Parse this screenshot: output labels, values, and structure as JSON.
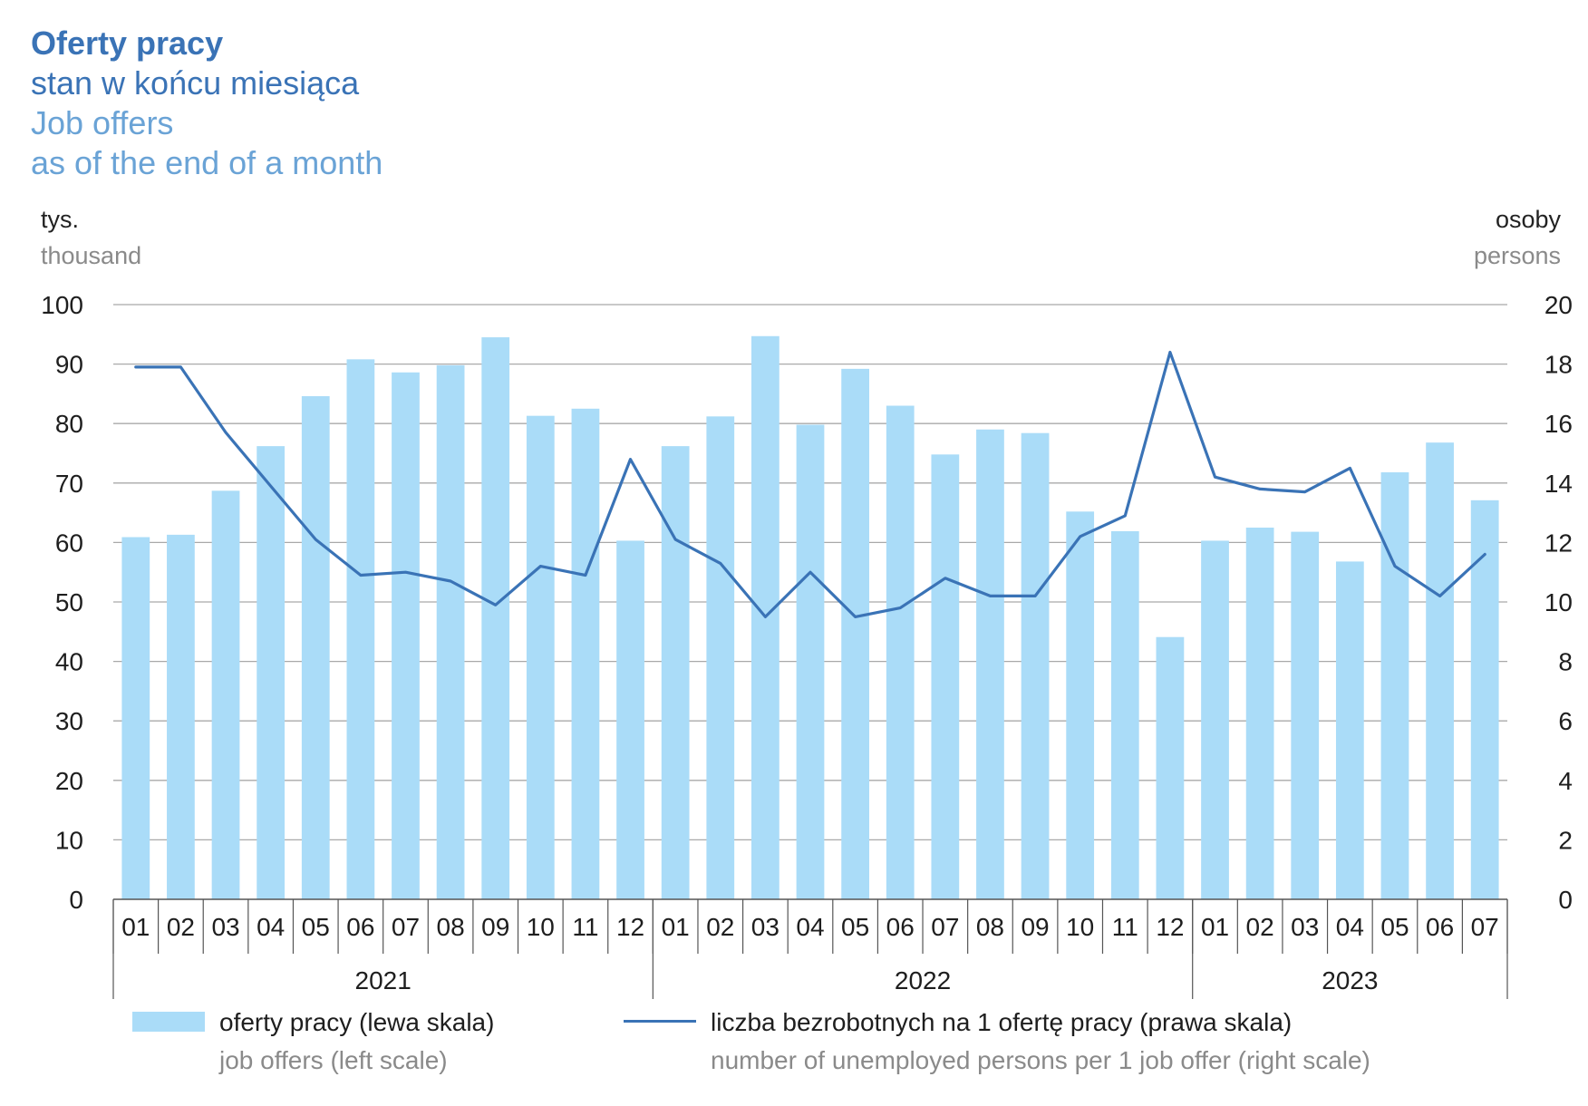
{
  "title": {
    "pl_bold": "Oferty pracy",
    "pl_sub": "stan w końcu miesiąca",
    "en_line1": "Job offers",
    "en_line2": "as of the end of a month"
  },
  "units": {
    "left_pl": "tys.",
    "left_en": "thousand",
    "right_pl": "osoby",
    "right_en": "persons"
  },
  "legend": {
    "bars_pl": "oferty pracy (lewa skala)",
    "bars_en": "job offers (left scale)",
    "line_pl": "liczba bezrobotnych na 1 ofertę pracy (prawa skala)",
    "line_en": "number of unemployed persons per 1 job offer (right scale)"
  },
  "colors": {
    "bars": "#aadcf8",
    "line": "#3a73b6",
    "grid": "#a9a9a9",
    "axis": "#555555"
  },
  "chart_data": {
    "type": "bar",
    "categories": [
      "01",
      "02",
      "03",
      "04",
      "05",
      "06",
      "07",
      "08",
      "09",
      "10",
      "11",
      "12",
      "01",
      "02",
      "03",
      "04",
      "05",
      "06",
      "07",
      "08",
      "09",
      "10",
      "11",
      "12",
      "01",
      "02",
      "03",
      "04",
      "05",
      "06",
      "07"
    ],
    "year_groups": [
      {
        "label": "2021",
        "count": 12
      },
      {
        "label": "2022",
        "count": 12
      },
      {
        "label": "2023",
        "count": 7
      }
    ],
    "series": [
      {
        "name": "oferty pracy (lewa skala)",
        "type": "bar",
        "axis": "left",
        "values": [
          60.9,
          61.3,
          68.7,
          76.2,
          84.6,
          90.8,
          88.6,
          89.8,
          94.5,
          81.3,
          82.5,
          60.3,
          76.2,
          81.2,
          94.7,
          79.8,
          89.2,
          83.0,
          74.8,
          79.0,
          78.4,
          65.2,
          61.9,
          44.1,
          60.3,
          62.5,
          61.8,
          56.8,
          71.8,
          76.8,
          67.1
        ]
      },
      {
        "name": "liczba bezrobotnych na 1 ofertę pracy (prawa skala)",
        "type": "line",
        "axis": "right",
        "values": [
          17.9,
          17.9,
          15.7,
          13.9,
          12.1,
          10.9,
          11.0,
          10.7,
          9.9,
          11.2,
          10.9,
          14.8,
          12.1,
          11.3,
          9.5,
          11.0,
          9.5,
          9.8,
          10.8,
          10.2,
          10.2,
          12.2,
          12.9,
          18.4,
          14.2,
          13.8,
          13.7,
          14.5,
          11.2,
          10.2,
          11.6
        ]
      }
    ],
    "y_left": {
      "min": 0,
      "max": 100,
      "ticks": [
        0,
        10,
        20,
        30,
        40,
        50,
        60,
        70,
        80,
        90,
        100
      ]
    },
    "y_right": {
      "min": 0,
      "max": 20,
      "ticks": [
        0,
        2,
        4,
        6,
        8,
        10,
        12,
        14,
        16,
        18,
        20
      ]
    },
    "grid": true,
    "legend_position": "bottom"
  }
}
